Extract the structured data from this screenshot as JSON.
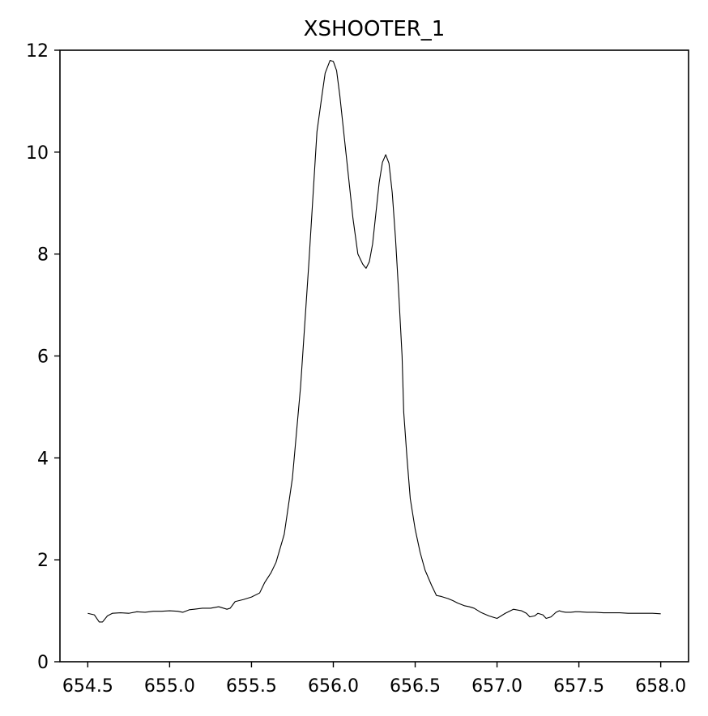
{
  "chart_data": {
    "type": "line",
    "title": "XSHOOTER_1",
    "xlabel": "",
    "ylabel": "",
    "xlim": [
      654.33,
      658.17
    ],
    "ylim": [
      0,
      12
    ],
    "xticks": [
      654.5,
      655.0,
      655.5,
      656.0,
      656.5,
      657.0,
      657.5,
      658.0
    ],
    "xtick_labels": [
      "654.5",
      "655.0",
      "655.5",
      "656.0",
      "656.5",
      "657.0",
      "657.5",
      "658.0"
    ],
    "yticks": [
      0,
      2,
      4,
      6,
      8,
      10,
      12
    ],
    "ytick_labels": [
      "0",
      "2",
      "4",
      "6",
      "8",
      "10",
      "12"
    ],
    "grid": false,
    "line_color": "#000000",
    "series": [
      {
        "x": [
          654.5,
          654.54,
          654.57,
          654.59,
          654.62,
          654.65,
          654.7,
          654.75,
          654.8,
          654.85,
          654.9,
          654.95,
          655.0,
          655.05,
          655.08,
          655.12,
          655.15,
          655.2,
          655.25,
          655.3,
          655.35,
          655.37,
          655.4,
          655.45,
          655.5,
          655.55,
          655.58,
          655.62,
          655.65,
          655.7,
          655.75,
          655.8,
          655.85,
          655.9,
          655.93,
          655.95,
          655.98,
          656.0,
          656.02,
          656.04,
          656.06,
          656.08,
          656.1,
          656.12,
          656.15,
          656.18,
          656.2,
          656.22,
          656.24,
          656.26,
          656.28,
          656.3,
          656.32,
          656.34,
          656.36,
          656.38,
          656.4,
          656.42,
          656.43,
          656.45,
          656.47,
          656.5,
          656.53,
          656.56,
          656.6,
          656.63,
          656.66,
          656.7,
          656.73,
          656.76,
          656.8,
          656.83,
          656.86,
          656.9,
          656.95,
          657.0,
          657.05,
          657.1,
          657.15,
          657.18,
          657.2,
          657.23,
          657.25,
          657.28,
          657.3,
          657.33,
          657.36,
          657.38,
          657.4,
          657.42,
          657.45,
          657.48,
          657.5,
          657.55,
          657.6,
          657.65,
          657.7,
          657.75,
          657.8,
          657.85,
          657.9,
          657.95,
          658.0
        ],
        "y": [
          0.95,
          0.92,
          0.78,
          0.78,
          0.9,
          0.95,
          0.96,
          0.95,
          0.98,
          0.97,
          0.99,
          0.99,
          1.0,
          0.99,
          0.97,
          1.02,
          1.03,
          1.05,
          1.05,
          1.08,
          1.03,
          1.05,
          1.18,
          1.22,
          1.27,
          1.35,
          1.55,
          1.75,
          1.95,
          2.5,
          3.6,
          5.4,
          7.8,
          10.4,
          11.1,
          11.55,
          11.8,
          11.78,
          11.6,
          11.1,
          10.5,
          9.9,
          9.3,
          8.7,
          8.0,
          7.8,
          7.72,
          7.85,
          8.2,
          8.8,
          9.4,
          9.8,
          9.95,
          9.78,
          9.2,
          8.3,
          7.2,
          6.0,
          4.9,
          4.0,
          3.2,
          2.6,
          2.15,
          1.8,
          1.5,
          1.3,
          1.28,
          1.24,
          1.2,
          1.15,
          1.1,
          1.08,
          1.05,
          0.97,
          0.9,
          0.85,
          0.95,
          1.03,
          1.0,
          0.95,
          0.88,
          0.9,
          0.95,
          0.92,
          0.85,
          0.88,
          0.97,
          1.0,
          0.98,
          0.97,
          0.97,
          0.98,
          0.98,
          0.97,
          0.97,
          0.96,
          0.96,
          0.96,
          0.95,
          0.95,
          0.95,
          0.95,
          0.94
        ]
      }
    ]
  }
}
